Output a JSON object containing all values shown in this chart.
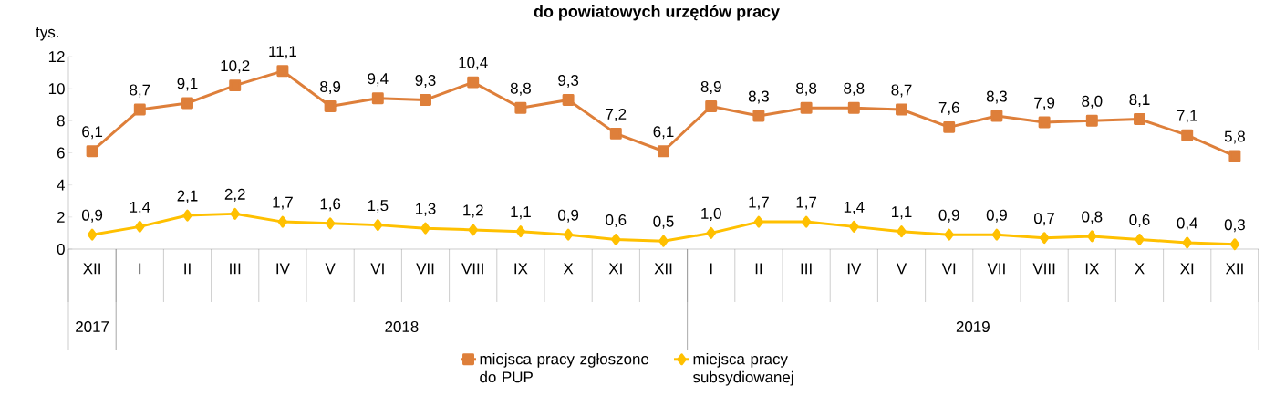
{
  "chart_data": {
    "type": "line",
    "title": "do powiatowych urzędów pracy",
    "ylabel": "tys.",
    "categories": [
      "XII",
      "I",
      "II",
      "III",
      "IV",
      "V",
      "VI",
      "VII",
      "VIII",
      "IX",
      "X",
      "XI",
      "XII",
      "I",
      "II",
      "III",
      "IV",
      "V",
      "VI",
      "VII",
      "VIII",
      "IX",
      "X",
      "XI",
      "XII"
    ],
    "annotations": [
      "2017",
      "2018",
      "2019"
    ],
    "series": [
      {
        "name": "miejsca pracy zgłoszone do PUP",
        "color": "#de7f3a",
        "marker": "square",
        "values": [
          6.1,
          8.7,
          9.1,
          10.2,
          11.1,
          8.9,
          9.4,
          9.3,
          10.4,
          8.8,
          9.3,
          7.2,
          6.1,
          8.9,
          8.3,
          8.8,
          8.8,
          8.7,
          7.6,
          8.3,
          7.9,
          8.0,
          8.1,
          7.1,
          5.8
        ],
        "value_labels": [
          "6,1",
          "8,7",
          "9,1",
          "10,2",
          "11,1",
          "8,9",
          "9,4",
          "9,3",
          "10,4",
          "8,8",
          "9,3",
          "7,2",
          "6,1",
          "8,9",
          "8,3",
          "8,8",
          "8,8",
          "8,7",
          "7,6",
          "8,3",
          "7,9",
          "8,0",
          "8,1",
          "7,1",
          "5,8"
        ]
      },
      {
        "name": "miejsca pracy subsydiowanej",
        "color": "#ffc000",
        "marker": "diamond",
        "values": [
          0.9,
          1.4,
          2.1,
          2.2,
          1.7,
          1.6,
          1.5,
          1.3,
          1.2,
          1.1,
          0.9,
          0.6,
          0.5,
          1.0,
          1.7,
          1.7,
          1.4,
          1.1,
          0.9,
          0.9,
          0.7,
          0.8,
          0.6,
          0.4,
          0.3
        ],
        "value_labels": [
          "0,9",
          "1,4",
          "2,1",
          "2,2",
          "1,7",
          "1,6",
          "1,5",
          "1,3",
          "1,2",
          "1,1",
          "0,9",
          "0,6",
          "0,5",
          "1,0",
          "1,7",
          "1,7",
          "1,4",
          "1,1",
          "0,9",
          "0,9",
          "0,7",
          "0,8",
          "0,6",
          "0,4",
          "0,3"
        ]
      }
    ],
    "ylim": [
      0,
      12
    ],
    "yticks": [
      0,
      2,
      4,
      6,
      8,
      10,
      12
    ],
    "grid": false,
    "legend": "bottom"
  }
}
